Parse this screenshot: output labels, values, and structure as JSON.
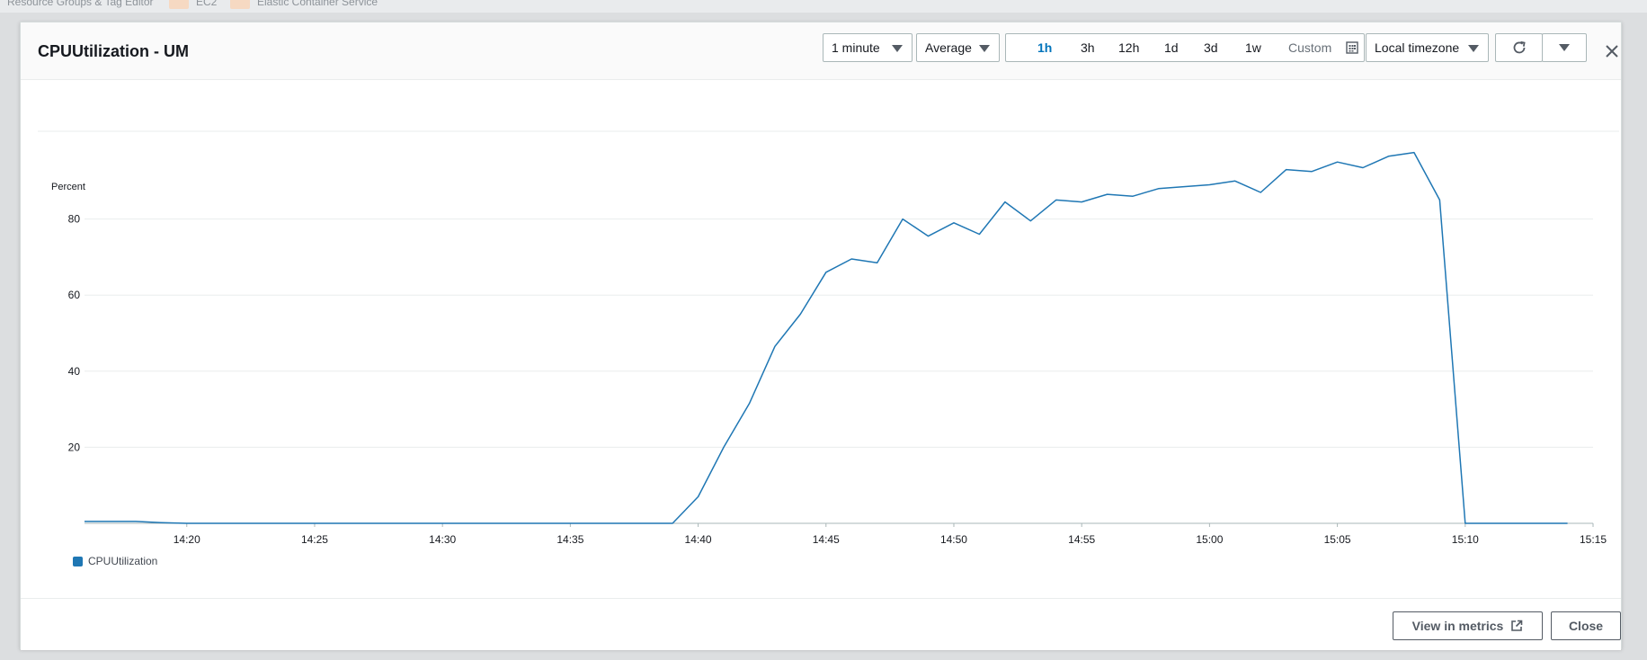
{
  "background": {
    "items": [
      "Resource Groups & Tag Editor",
      "EC2",
      "Elastic Container Service"
    ]
  },
  "modal": {
    "title": "CPUUtilization - UM",
    "period": "1 minute",
    "statistic": "Average",
    "ranges": [
      {
        "label": "1h",
        "active": true
      },
      {
        "label": "3h",
        "active": false
      },
      {
        "label": "12h",
        "active": false
      },
      {
        "label": "1d",
        "active": false
      },
      {
        "label": "3d",
        "active": false
      },
      {
        "label": "1w",
        "active": false
      }
    ],
    "custom_label": "Custom",
    "timezone": "Local timezone",
    "icons": {
      "refresh": "refresh-icon",
      "more": "caret-down-icon",
      "close": "close-icon",
      "calendar": "calendar-icon",
      "external": "external-link-icon"
    },
    "footer": {
      "view_in_metrics": "View in metrics",
      "close": "Close"
    }
  },
  "chart_data": {
    "type": "line",
    "ylabel": "Percent",
    "yticks": [
      20,
      40,
      60,
      80
    ],
    "ylim": [
      0,
      100
    ],
    "xticks": [
      "14:20",
      "14:25",
      "14:30",
      "14:35",
      "14:40",
      "14:45",
      "14:50",
      "14:55",
      "15:00",
      "15:05",
      "15:10",
      "15:15"
    ],
    "xlim": [
      "14:16",
      "15:15"
    ],
    "grid": true,
    "legend_position": "bottom-left",
    "series": [
      {
        "name": "CPUUtilization",
        "color": "#1f77b4",
        "x": [
          "14:16",
          "14:17",
          "14:18",
          "14:19",
          "14:20",
          "14:21",
          "14:22",
          "14:23",
          "14:24",
          "14:25",
          "14:26",
          "14:27",
          "14:28",
          "14:29",
          "14:30",
          "14:31",
          "14:32",
          "14:33",
          "14:34",
          "14:35",
          "14:36",
          "14:37",
          "14:38",
          "14:39",
          "14:40",
          "14:41",
          "14:42",
          "14:43",
          "14:44",
          "14:45",
          "14:46",
          "14:47",
          "14:48",
          "14:49",
          "14:50",
          "14:51",
          "14:52",
          "14:53",
          "14:54",
          "14:55",
          "14:56",
          "14:57",
          "14:58",
          "14:59",
          "15:00",
          "15:01",
          "15:02",
          "15:03",
          "15:04",
          "15:05",
          "15:06",
          "15:07",
          "15:08",
          "15:09",
          "15:10",
          "15:11",
          "15:12",
          "15:13",
          "15:14"
        ],
        "values": [
          0.5,
          0.5,
          0.5,
          0.2,
          0,
          0,
          0,
          0,
          0,
          0,
          0,
          0,
          0,
          0,
          0,
          0,
          0,
          0,
          0,
          0,
          0,
          0,
          0,
          0,
          7,
          20,
          31.5,
          46.5,
          55,
          66,
          69.5,
          68.5,
          80,
          75.5,
          79,
          76,
          84.5,
          79.5,
          85,
          84.5,
          86.5,
          86,
          88,
          88.5,
          89,
          90,
          87,
          93,
          92.5,
          95,
          93.5,
          96.5,
          97.5,
          85,
          0,
          0,
          0,
          0,
          0
        ]
      }
    ]
  }
}
